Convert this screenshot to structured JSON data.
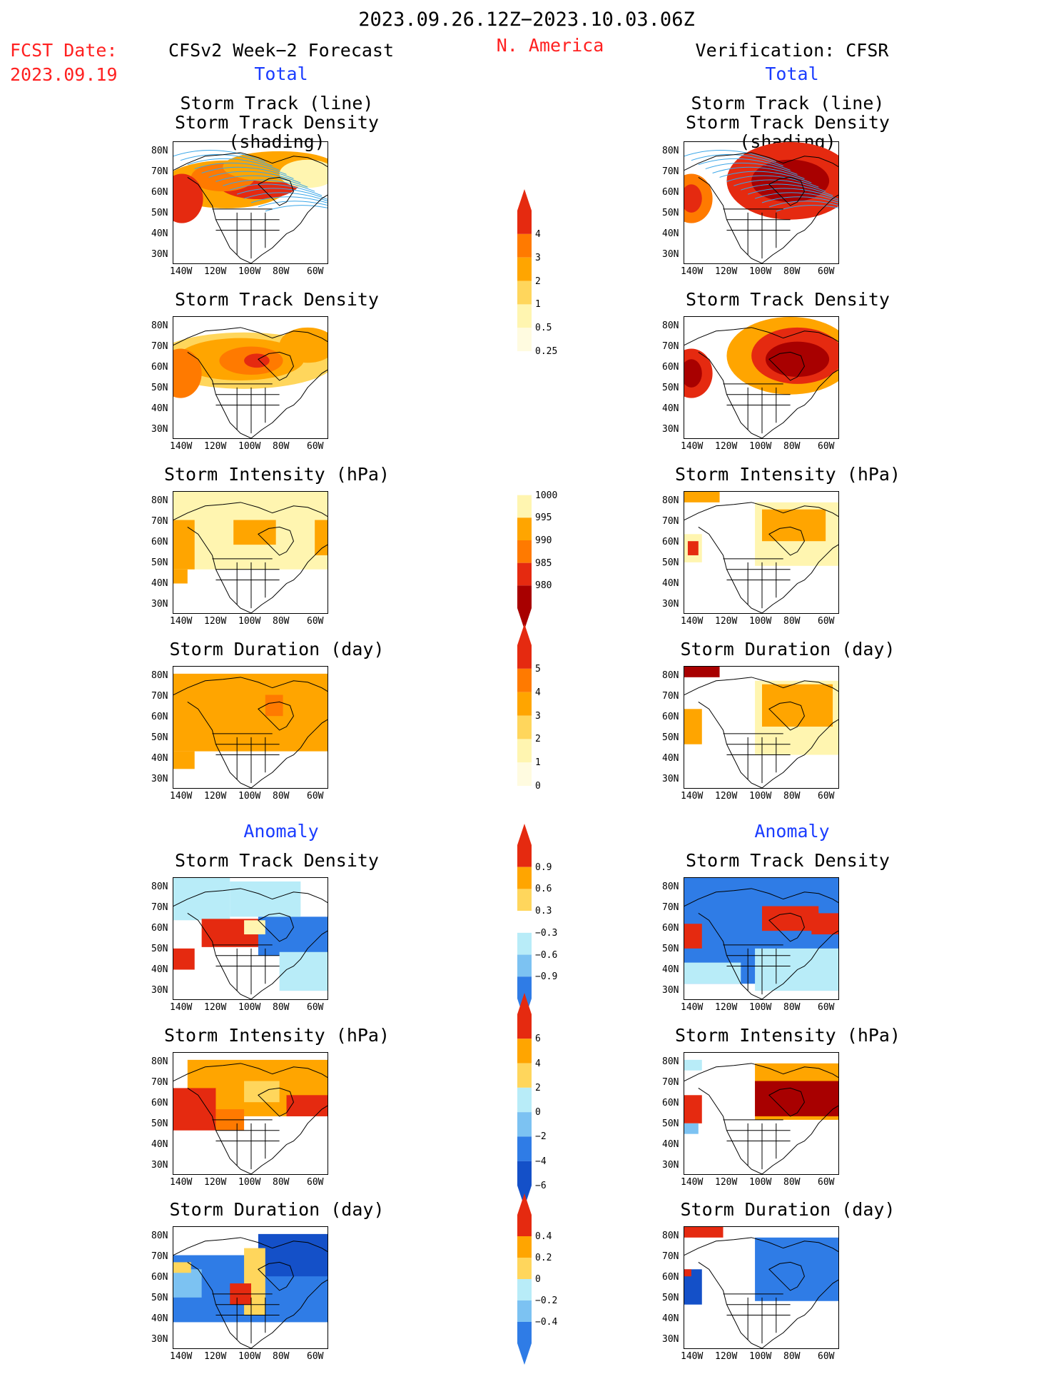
{
  "header": {
    "date_range": "2023.09.26.12Z−2023.10.03.06Z",
    "region": "N. America",
    "fcst_label": "FCST Date:",
    "fcst_date": "2023.09.19",
    "left_title": "CFSv2 Week−2 Forecast",
    "left_sub": "Total",
    "right_title": "Verification: CFSR",
    "right_sub": "Total"
  },
  "sections": {
    "anomaly_left": "Anomaly",
    "anomaly_right": "Anomaly"
  },
  "panel_titles": {
    "track1": "Storm Track (line)",
    "track2": "Storm Track Density (shading)",
    "density": "Storm Track Density",
    "intensity": "Storm Intensity (hPa)",
    "duration": "Storm Duration (day)"
  },
  "axes": {
    "lat_labels": [
      "80N",
      "70N",
      "60N",
      "50N",
      "40N",
      "30N"
    ],
    "lon_labels": [
      "140W",
      "120W",
      "100W",
      "80W",
      "60W"
    ]
  },
  "colorbars": {
    "density_total": [
      "4",
      "3",
      "2",
      "1",
      "0.5",
      "0.25"
    ],
    "intensity_total": [
      "1000",
      "995",
      "990",
      "985",
      "980"
    ],
    "duration_total": [
      "5",
      "4",
      "3",
      "2",
      "1",
      "0"
    ],
    "density_anom": [
      "0.9",
      "0.6",
      "0.3",
      "−0.3",
      "−0.6",
      "−0.9"
    ],
    "intensity_anom": [
      "6",
      "4",
      "2",
      "0",
      "−2",
      "−4",
      "−6"
    ],
    "duration_anom": [
      "0.4",
      "0.2",
      "0",
      "−0.2",
      "−0.4"
    ]
  },
  "palette": {
    "pale_yellow": "#fff5b0",
    "yellow": "#ffd65c",
    "orange": "#ffa500",
    "dark_orange": "#ff7a00",
    "red": "#e52a10",
    "dark_red": "#a80000",
    "light_blue": "#b8ecf8",
    "mid_blue": "#7cc2f2",
    "blue": "#2f7ce6",
    "dark_blue": "#1450c8",
    "track_line": "#3aa6e8"
  }
}
